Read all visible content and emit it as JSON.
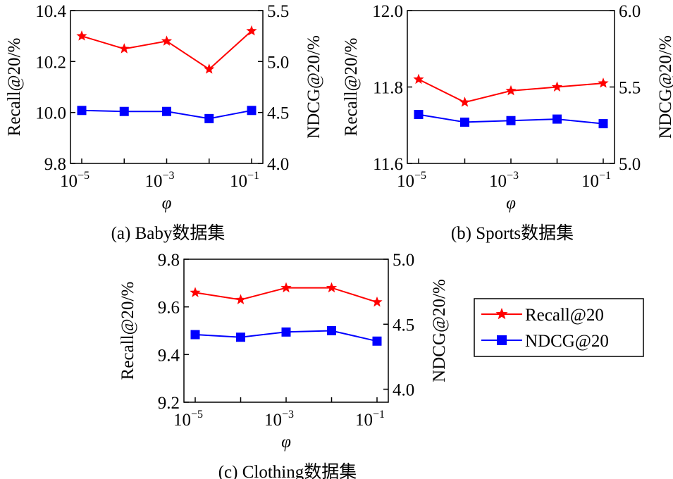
{
  "legend": {
    "recall": "Recall@20",
    "ndcg": "NDCG@20",
    "placement": "right",
    "recall_color": "#ff0000",
    "ndcg_color": "#0000ff"
  },
  "chart_data": [
    {
      "type": "line",
      "caption": "(a) Baby数据集",
      "xlabel": "φ",
      "ylabel_left": "Recall@20/%",
      "ylabel_right": "NDCG@20/%",
      "x": [
        1e-05,
        0.0001,
        0.001,
        0.01,
        0.1
      ],
      "x_scale": "log",
      "xticks": [
        {
          "base": "10",
          "exp": "−5"
        },
        {
          "base": "10",
          "exp": "−3"
        },
        {
          "base": "10",
          "exp": "−1"
        }
      ],
      "ylim_left": [
        9.8,
        10.4
      ],
      "yticks_left": [
        "9.8",
        "10.0",
        "10.2",
        "10.4"
      ],
      "ylim_right": [
        4.0,
        5.5
      ],
      "yticks_right": [
        "4.0",
        "4.5",
        "5.0",
        "5.5"
      ],
      "series": [
        {
          "name": "Recall@20",
          "axis": "left",
          "color": "#ff0000",
          "marker": "star",
          "values": [
            10.3,
            10.25,
            10.28,
            10.17,
            10.32
          ]
        },
        {
          "name": "NDCG@20",
          "axis": "right",
          "color": "#0000ff",
          "marker": "square",
          "values": [
            4.52,
            4.51,
            4.51,
            4.44,
            4.52
          ]
        }
      ]
    },
    {
      "type": "line",
      "caption": "(b) Sports数据集",
      "xlabel": "φ",
      "ylabel_left": "Recall@20/%",
      "ylabel_right": "NDCG@20/%",
      "x": [
        1e-05,
        0.0001,
        0.001,
        0.01,
        0.1
      ],
      "x_scale": "log",
      "xticks": [
        {
          "base": "10",
          "exp": "−5"
        },
        {
          "base": "10",
          "exp": "−3"
        },
        {
          "base": "10",
          "exp": "−1"
        }
      ],
      "ylim_left": [
        11.6,
        12.0
      ],
      "yticks_left": [
        "11.6",
        "11.8",
        "12.0"
      ],
      "ylim_right": [
        5.0,
        6.0
      ],
      "yticks_right": [
        "5.0",
        "5.5",
        "6.0"
      ],
      "series": [
        {
          "name": "Recall@20",
          "axis": "left",
          "color": "#ff0000",
          "marker": "star",
          "values": [
            11.82,
            11.76,
            11.79,
            11.8,
            11.81
          ]
        },
        {
          "name": "NDCG@20",
          "axis": "right",
          "color": "#0000ff",
          "marker": "square",
          "values": [
            5.32,
            5.27,
            5.28,
            5.29,
            5.26
          ]
        }
      ]
    },
    {
      "type": "line",
      "caption": "(c) Clothing数据集",
      "xlabel": "φ",
      "ylabel_left": "Recall@20/%",
      "ylabel_right": "NDCG@20/%",
      "x": [
        1e-05,
        0.0001,
        0.001,
        0.01,
        0.1
      ],
      "x_scale": "log",
      "xticks": [
        {
          "base": "10",
          "exp": "−5"
        },
        {
          "base": "10",
          "exp": "−3"
        },
        {
          "base": "10",
          "exp": "−1"
        }
      ],
      "ylim_left": [
        9.2,
        9.8
      ],
      "yticks_left": [
        "9.2",
        "9.4",
        "9.6",
        "9.8"
      ],
      "ylim_right": [
        3.9,
        5.0
      ],
      "yticks_right": [
        "4.0",
        "4.5",
        "5.0"
      ],
      "series": [
        {
          "name": "Recall@20",
          "axis": "left",
          "color": "#ff0000",
          "marker": "star",
          "values": [
            9.66,
            9.63,
            9.68,
            9.68,
            9.62
          ]
        },
        {
          "name": "NDCG@20",
          "axis": "right",
          "color": "#0000ff",
          "marker": "square",
          "values": [
            4.42,
            4.4,
            4.44,
            4.45,
            4.37
          ]
        }
      ]
    }
  ]
}
